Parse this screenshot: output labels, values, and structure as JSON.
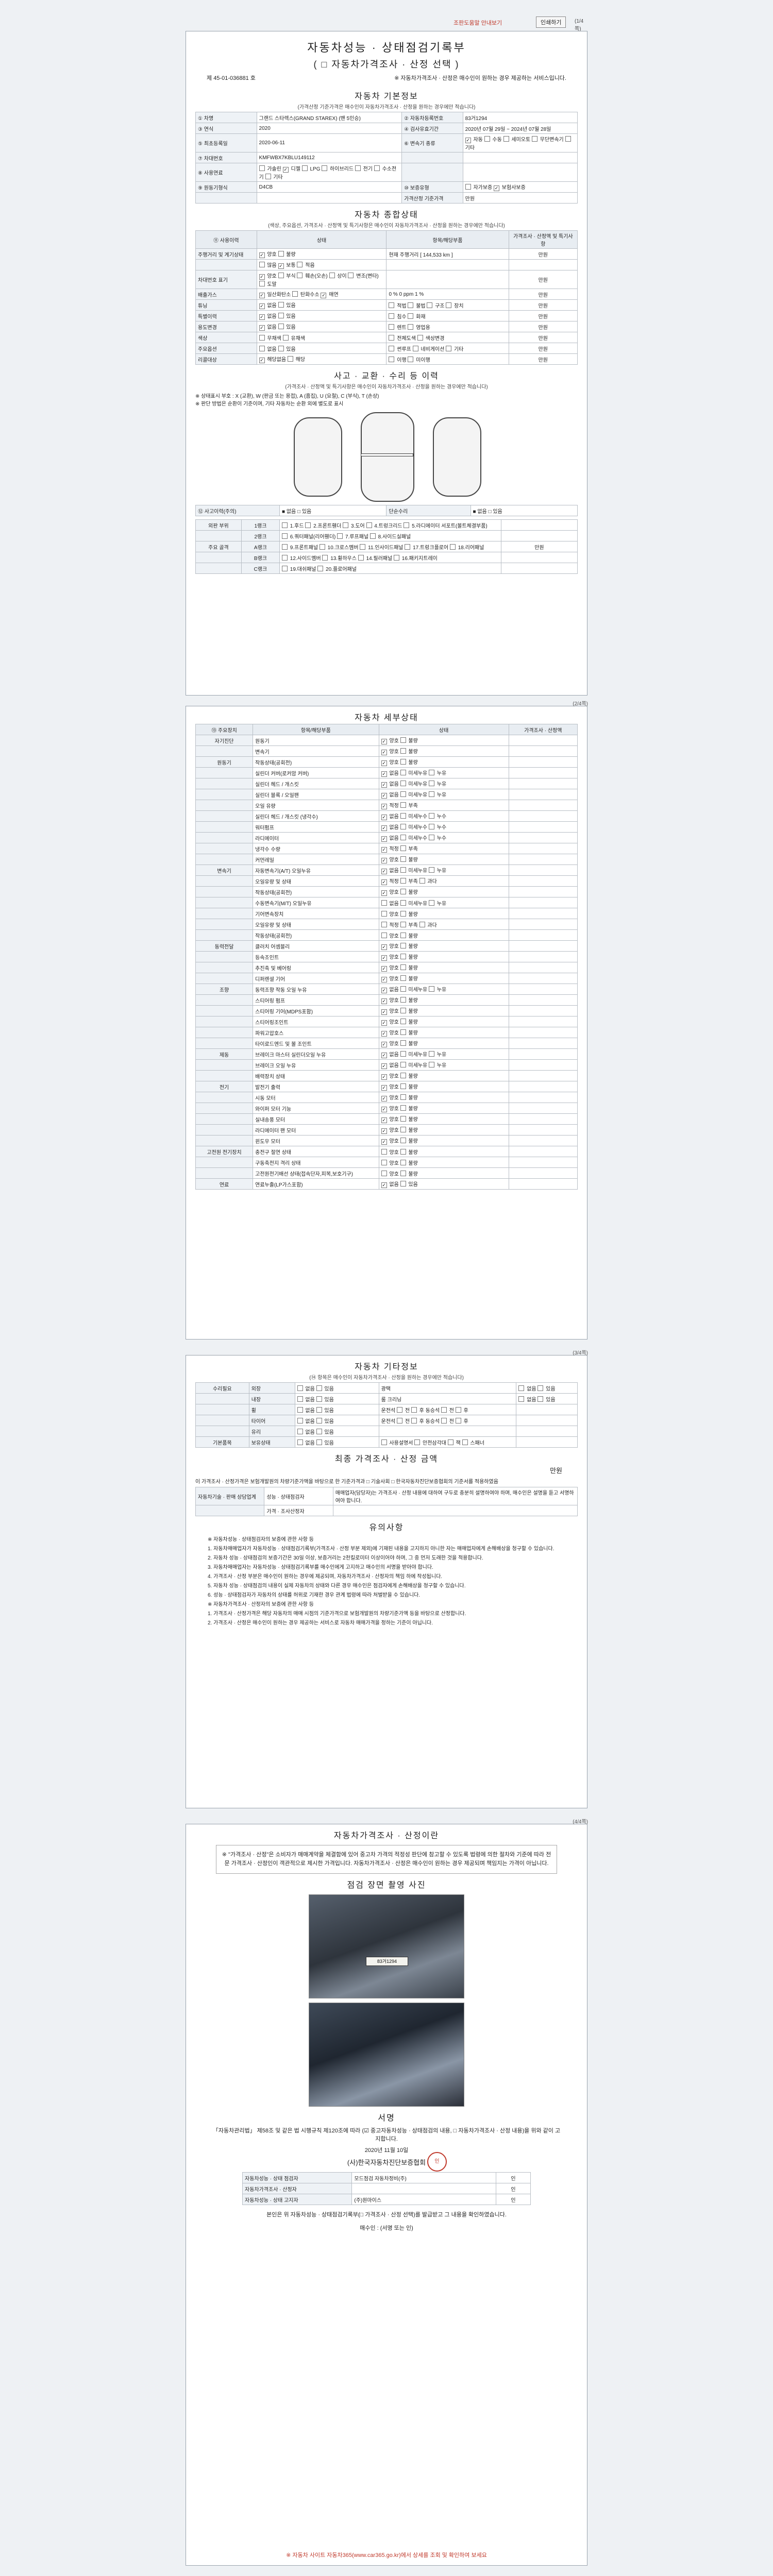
{
  "topbar": {
    "note": "조판도움말 안내보기",
    "print": "인쇄하기",
    "page": "(1/4쪽)"
  },
  "header": {
    "title1": "자동차성능 · 상태점검기록부",
    "title2": "( □ 자동차가격조사 · 산정 선택 )",
    "doc_no_label": "제",
    "doc_no": "45-01-036881",
    "doc_no_suffix": "호",
    "notice": "※ 자동차가격조사 · 산정은 매수인이 원하는 경우 제공하는 서비스입니다."
  },
  "basic": {
    "title": "자동차 기본정보",
    "cap": "(가격산정 기준가격은 매수인이 자동차가격조사 · 산정을 원하는 경우에만 적습니다)",
    "rows": [
      [
        "① 차명",
        "그랜드 스타렉스(GRAND STAREX) (밴 5인승)",
        "② 자동차등록번호",
        "83거1294"
      ],
      [
        "③ 연식",
        "2020",
        "④ 검사유효기간",
        "2020년 07월 29일 ~ 2024년 07월 28일"
      ],
      [
        "⑤ 최초등록일",
        "2020-06-11",
        "⑥ 변속기 종류",
        "■ 자동  □ 수동  □ 세미오토  □ 무단변속기  □ 기타"
      ],
      [
        "⑦ 차대번호",
        "KMFWBX7KBLU149112",
        "",
        ""
      ],
      [
        "⑧ 사용연료",
        "□ 가솔린  ■ 디젤  □ LPG  □ 하이브리드  □ 전기  □ 수소전기  □ 기타",
        "",
        ""
      ],
      [
        "⑨ 원동기형식",
        "D4CB",
        "⑩ 보증유형",
        "□ 자가보증  ■ 보험사보증"
      ],
      [
        "",
        "",
        "가격산정 기준가격",
        "만원"
      ]
    ]
  },
  "summary": {
    "title": "자동차 종합상태",
    "cap": "(색상, 주요옵션, 가격조사 · 산정액 및 특기사항은 매수인이 자동차가격조사 · 산정을 원하는 경우에만 적습니다)",
    "head": [
      "⑪ 사용이력",
      "상태",
      "항목/해당부품",
      "가격조사 · 산정액 및 특기사항"
    ],
    "rows": [
      [
        "주행거리 및 계기상태",
        "■ 양호  □ 불량",
        "현재 주행거리 [ 144,533 km ]",
        "만원"
      ],
      [
        "",
        "□ 많음  ■ 보통  □ 적음",
        "",
        ""
      ],
      [
        "차대번호 표기",
        "■ 양호  □ 부식  □ 훼손(오손)  □ 상이  □ 변조(변타)  □ 도말",
        "",
        "만원"
      ],
      [
        "배출가스",
        "■ 일산화탄소  □ 탄화수소  ■ 매연",
        "0 %  0 ppm  1 %",
        "만원"
      ],
      [
        "튜닝",
        "■ 없음  □ 있음",
        "□ 적법  □ 불법  □ 구조  □ 장치",
        "만원"
      ],
      [
        "특별이력",
        "■ 없음  □ 있음",
        "□ 침수  □ 화재",
        "만원"
      ],
      [
        "용도변경",
        "■ 없음  □ 있음",
        "□ 렌트  □ 영업용",
        "만원"
      ],
      [
        "색상",
        "□ 무채색  □ 유채색",
        "□ 전체도색  □ 색상변경",
        "만원"
      ],
      [
        "주요옵션",
        "□ 없음  □ 있음",
        "□ 썬루프  □ 네비게이션  □ 기타",
        "만원"
      ],
      [
        "리콜대상",
        "■ 해당없음  □ 해당",
        "□ 이행  □ 미이행",
        "만원"
      ]
    ]
  },
  "accident": {
    "title": "사고 · 교환 · 수리 등 이력",
    "cap": "(가격조사 · 산정액 및 특기사항은 매수인이 자동차가격조사 · 산정을 원하는 경우에만 적습니다)",
    "legend1": "※ 상태표시 부호 : X (교환), W (판금 또는 용접), A (흠집), U (요철), C (부식), T (손상)",
    "legend2": "※ 판단 방법은 순환이 기준이며, 기타 자동차는 순환 외에 별도로 표시",
    "accident_label": "⑫ 사고이력(주의)",
    "accident_val": "■ 없음  □ 있음",
    "simple_label": "단순수리",
    "simple_val": "■ 없음  □ 있음",
    "rows": [
      [
        "외판 부위",
        "1랭크",
        "□ 1.후드  □ 2.프론트휀더  □ 3.도어  □ 4.트렁크리드  □ 5.라디에이터 서포트(볼트체결부품)"
      ],
      [
        "",
        "2랭크",
        "□ 6.쿼터패널(리어휀더)  □ 7.루프패널  □ 8.사이드실패널"
      ],
      [
        "주요 골격",
        "A랭크",
        "□ 9.프론트패널  □ 10.크로스멤버  □ 11.인사이드패널  □ 17.트렁크플로어  □ 18.리어패널"
      ],
      [
        "",
        "B랭크",
        "□ 12.사이드멤버  □ 13.휠하우스  □ 14.필러패널  □ 16.패키지트레이"
      ],
      [
        "",
        "C랭크",
        "□ 19.대쉬패널  □ 20.플로어패널"
      ]
    ],
    "price": "만원"
  },
  "detail": {
    "title": "자동차 세부상태",
    "head": [
      "⑬ 주요장치",
      "항목/해당부품",
      "상태",
      "가격조사 · 산정액"
    ],
    "rows": [
      [
        "자기진단",
        "원동기",
        "■ 양호  □ 불량"
      ],
      [
        "",
        "변속기",
        "■ 양호  □ 불량"
      ],
      [
        "원동기",
        "작동상태(공회전)",
        "■ 양호  □ 불량"
      ],
      [
        "",
        "실린더 커버(로커암 커버)",
        "■ 없음  □ 미세누유  □ 누유"
      ],
      [
        "",
        "실린더 헤드 / 개스킷",
        "■ 없음  □ 미세누유  □ 누유"
      ],
      [
        "",
        "실린더 블록 / 오일팬",
        "■ 없음  □ 미세누유  □ 누유"
      ],
      [
        "",
        "오일 유량",
        "■ 적정  □ 부족"
      ],
      [
        "",
        "실린더 헤드 / 개스킷 (냉각수)",
        "■ 없음  □ 미세누수  □ 누수"
      ],
      [
        "",
        "워터펌프",
        "■ 없음  □ 미세누수  □ 누수"
      ],
      [
        "",
        "라디에이터",
        "■ 없음  □ 미세누수  □ 누수"
      ],
      [
        "",
        "냉각수 수량",
        "■ 적정  □ 부족"
      ],
      [
        "",
        "커먼레일",
        "■ 양호  □ 불량"
      ],
      [
        "변속기",
        "자동변속기(A/T) 오일누유",
        "■ 없음  □ 미세누유  □ 누유"
      ],
      [
        "",
        "오일유량 및 상태",
        "■ 적정  □ 부족  □ 과다"
      ],
      [
        "",
        "작동상태(공회전)",
        "■ 양호  □ 불량"
      ],
      [
        "",
        "수동변속기(M/T) 오일누유",
        "□ 없음  □ 미세누유  □ 누유"
      ],
      [
        "",
        "기어변속장치",
        "□ 양호  □ 불량"
      ],
      [
        "",
        "오일유량 및 상태",
        "□ 적정  □ 부족  □ 과다"
      ],
      [
        "",
        "작동상태(공회전)",
        "□ 양호  □ 불량"
      ],
      [
        "동력전달",
        "클러치 어셈블리",
        "■ 양호  □ 불량"
      ],
      [
        "",
        "등속조인트",
        "■ 양호  □ 불량"
      ],
      [
        "",
        "추진축 및 베어링",
        "■ 양호  □ 불량"
      ],
      [
        "",
        "디퍼렌셜 기어",
        "■ 양호  □ 불량"
      ],
      [
        "조향",
        "동력조향 작동 오일 누유",
        "■ 없음  □ 미세누유  □ 누유"
      ],
      [
        "",
        "스티어링 펌프",
        "■ 양호  □ 불량"
      ],
      [
        "",
        "스티어링 기어(MDPS포함)",
        "■ 양호  □ 불량"
      ],
      [
        "",
        "스티어링조인트",
        "■ 양호  □ 불량"
      ],
      [
        "",
        "파워고압호스",
        "■ 양호  □ 불량"
      ],
      [
        "",
        "타이로드엔드 및 볼 조인트",
        "■ 양호  □ 불량"
      ],
      [
        "제동",
        "브레이크 마스터 실린더오일 누유",
        "■ 없음  □ 미세누유  □ 누유"
      ],
      [
        "",
        "브레이크 오일 누유",
        "■ 없음  □ 미세누유  □ 누유"
      ],
      [
        "",
        "배력장치 상태",
        "■ 양호  □ 불량"
      ],
      [
        "전기",
        "발전기 출력",
        "■ 양호  □ 불량"
      ],
      [
        "",
        "시동 모터",
        "■ 양호  □ 불량"
      ],
      [
        "",
        "와이퍼 모터 기능",
        "■ 양호  □ 불량"
      ],
      [
        "",
        "실내송풍 모터",
        "■ 양호  □ 불량"
      ],
      [
        "",
        "라디에이터 팬 모터",
        "■ 양호  □ 불량"
      ],
      [
        "",
        "윈도우 모터",
        "■ 양호  □ 불량"
      ],
      [
        "고전원 전기장치",
        "충전구 절연 상태",
        "□ 양호  □ 불량"
      ],
      [
        "",
        "구동축전지 격리 상태",
        "□ 양호  □ 불량"
      ],
      [
        "",
        "고전원전기배선 상태(접속단자,피복,보호기구)",
        "□ 양호  □ 불량"
      ],
      [
        "연료",
        "연료누출(LP가스포함)",
        "■ 없음  □ 있음"
      ]
    ]
  },
  "etc": {
    "title": "자동차 기타정보",
    "cap": "(⑭ 항목은 매수인이 자동차가격조사 · 산정을 원하는 경우에만 적습니다)",
    "rows": [
      [
        "수리필요",
        "외장",
        "□ 없음  □ 있음",
        "광택",
        "□ 없음  □ 있음"
      ],
      [
        "",
        "내장",
        "□ 없음  □ 있음",
        "룸 크리닝",
        "□ 없음  □ 있음"
      ],
      [
        "",
        "휠",
        "□ 없음  □ 있음",
        "운전석 □ 전 □ 후  동승석 □ 전 □ 후",
        ""
      ],
      [
        "",
        "타이어",
        "□ 없음  □ 있음",
        "운전석 □ 전 □ 후  동승석 □ 전 □ 후",
        ""
      ],
      [
        "",
        "유리",
        "□ 없음  □ 있음",
        "",
        ""
      ],
      [
        "기본품목",
        "보유상태",
        "□ 없음  □ 있음",
        "□ 사용설명서  □ 안전삼각대  □ 잭  □ 스패너",
        ""
      ]
    ],
    "price": "만원"
  },
  "final": {
    "title": "최종 가격조사 · 산정 금액",
    "price": "만원",
    "note": "이 가격조사 · 산정가격은 보험개발원의 차량기준가액을 바탕으로 한 기준가격과 □ 기술사회 □ 한국자동차진단보증협회의 기준서를 적용하였음",
    "r1": [
      "자동차기술 · 판매 상담업계",
      "성능 · 상태점검자",
      "매매업자(담당자)는 가격조사 · 산정 내용에 대하여 구두로 충분히 설명하여야 하며, 매수인은 설명을 듣고 서명하여야 합니다."
    ],
    "r2": [
      "",
      "가격 · 조사산정자",
      ""
    ]
  },
  "notices": {
    "title": "유의사항",
    "lines": [
      "※ 자동차성능 · 상태점검자의 보증에 관한 사항 등",
      "1. 자동차매매업자가 자동차성능 · 상태점검기록부(가격조사 · 산정 부분 제외)에 기재된 내용을 고지하지 아니한 자는 매매업자에게 손해배상을 청구할 수 있습니다.",
      "2. 자동차 성능 · 상태점검의 보증기간은 30일 이상, 보증거리는 2천킬로미터 이상이어야 하며, 그 중 먼저 도래한 것을 적용합니다.",
      "3. 자동차매매업자는 자동차성능 · 상태점검기록부를 매수인에게 고지하고 매수인의 서명을 받아야 합니다.",
      "4. 가격조사 · 산정 부분은 매수인이 원하는 경우에 제공되며, 자동차가격조사 · 산정자의 책임 하에 작성됩니다.",
      "5. 자동차 성능 · 상태점검의 내용이 실제 자동차의 상태와 다른 경우 매수인은 점검자에게 손해배상을 청구할 수 있습니다.",
      "6. 성능 · 상태점검자가 자동차의 상태를 허위로 기재한 경우 관계 법령에 따라 처벌받을 수 있습니다.",
      "※ 자동차가격조사 · 산정자의 보증에 관한 사항 등",
      "1. 가격조사 · 산정가격은 해당 자동차의 매매 시점의 기준가격으로 보험개발원의 차량기준가액 등을 바탕으로 산정합니다.",
      "2. 가격조사 · 산정은 매수인이 원하는 경우 제공하는 서비스로 자동차 매매가격을 정하는 기준이 아닙니다."
    ]
  },
  "notice_box": {
    "title": "자동차가격조사 · 산정이란",
    "body": "※ \"가격조사 · 산정\"은 소비자가 매매계약을 체결함에 있어 중고차 가격의 적정성 판단에 참고할 수 있도록 법령에 의한 절차와 기준에 따라 전문 가격조사 · 산정인이 객관적으로 제시한 가격입니다. 자동차가격조사 · 산정은 매수인이 원하는 경우 제공되며 책임지는 가격이 아닙니다."
  },
  "photos": {
    "title": "점검 장면 촬영 사진",
    "plate": "83거1294"
  },
  "sign": {
    "title": "서명",
    "law": "「자동차관리법」 제58조 및 같은 법 시행규칙 제120조에 따라 (☑ 중고자동차성능 · 상태점검의 내용, □ 자동차가격조사 · 산정 내용)을 위와 같이 고지합니다.",
    "date": "2020년 11월 10일",
    "org": "(사)한국자동차진단보증협회",
    "seal": "인",
    "r1": [
      "자동차성능 · 상태 점검자",
      "모드점검 자동차정비(주)",
      "인"
    ],
    "r2": [
      "자동차가격조사 · 산정자",
      "",
      "인"
    ],
    "r3": [
      "자동차성능 · 상태 고지자",
      "(주)원마이스",
      "인"
    ],
    "confirm": "본인은 위 자동차성능 · 상태점검기록부(□ 가격조사 · 산정 선택)를 발급받고 그 내용을 확인하였습니다.",
    "buyer": "매수인 :                 (서명 또는 인)"
  },
  "footer": "※ 자동차 사이트 자동차365(www.car365.go.kr)에서 상세를 조회 및 확인하여 보세요",
  "page_labels": [
    "(2/4쪽)",
    "(3/4쪽)",
    "(4/4쪽)"
  ]
}
